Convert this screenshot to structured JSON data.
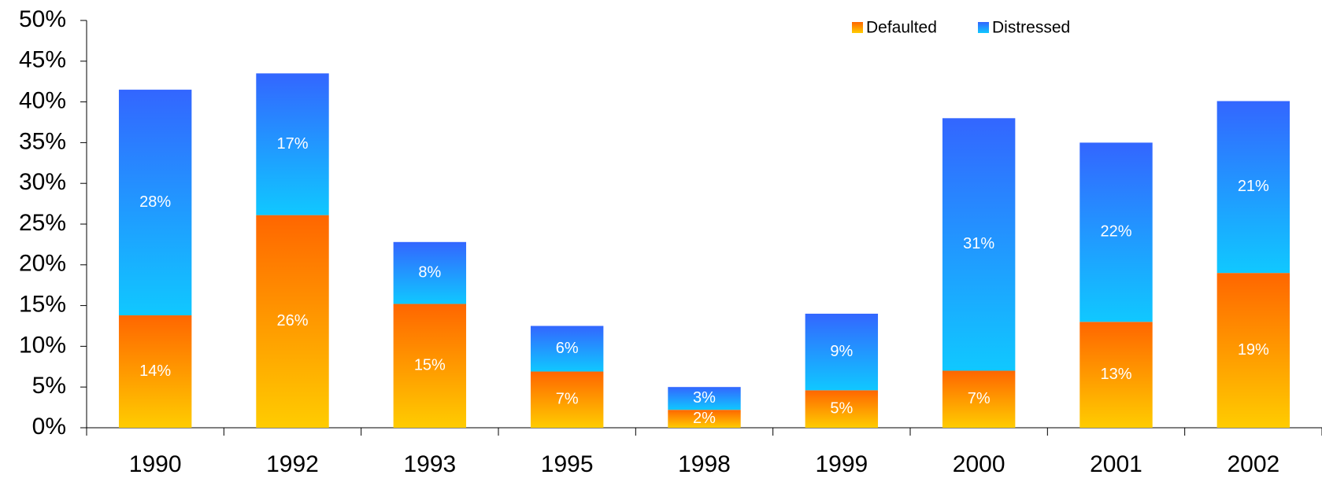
{
  "chart_data": {
    "type": "stacked_bar",
    "categories": [
      "1990",
      "1992",
      "1993",
      "1995",
      "1998",
      "1999",
      "2000",
      "2001",
      "2002"
    ],
    "series": [
      {
        "name": "Defaulted",
        "color": "#ff6600",
        "color_end": "#ffcc00",
        "values": [
          13.8,
          26.1,
          15.2,
          6.9,
          2.2,
          4.6,
          7.0,
          13.0,
          19.0
        ],
        "value_labels": [
          "14%",
          "26%",
          "15%",
          "7%",
          "2%",
          "5%",
          "7%",
          "13%",
          "19%"
        ]
      },
      {
        "name": "Distressed",
        "color": "#3366ff",
        "color_end": "#10c8ff",
        "values": [
          27.7,
          17.4,
          7.6,
          5.6,
          2.8,
          9.4,
          31.0,
          22.0,
          21.1
        ],
        "value_labels": [
          "28%",
          "17%",
          "8%",
          "6%",
          "3%",
          "9%",
          "31%",
          "22%",
          "21%"
        ]
      }
    ],
    "ylim": [
      0,
      50
    ],
    "yticks": [
      {
        "value": 0,
        "label": "0%"
      },
      {
        "value": 5,
        "label": "5%"
      },
      {
        "value": 10,
        "label": "10%"
      },
      {
        "value": 15,
        "label": "15%"
      },
      {
        "value": 20,
        "label": "20%"
      },
      {
        "value": 25,
        "label": "25%"
      },
      {
        "value": 30,
        "label": "30%"
      },
      {
        "value": 35,
        "label": "35%"
      },
      {
        "value": 40,
        "label": "40%"
      },
      {
        "value": 45,
        "label": "45%"
      },
      {
        "value": 50,
        "label": "50%"
      }
    ],
    "grid": false,
    "legend": "top-right"
  }
}
